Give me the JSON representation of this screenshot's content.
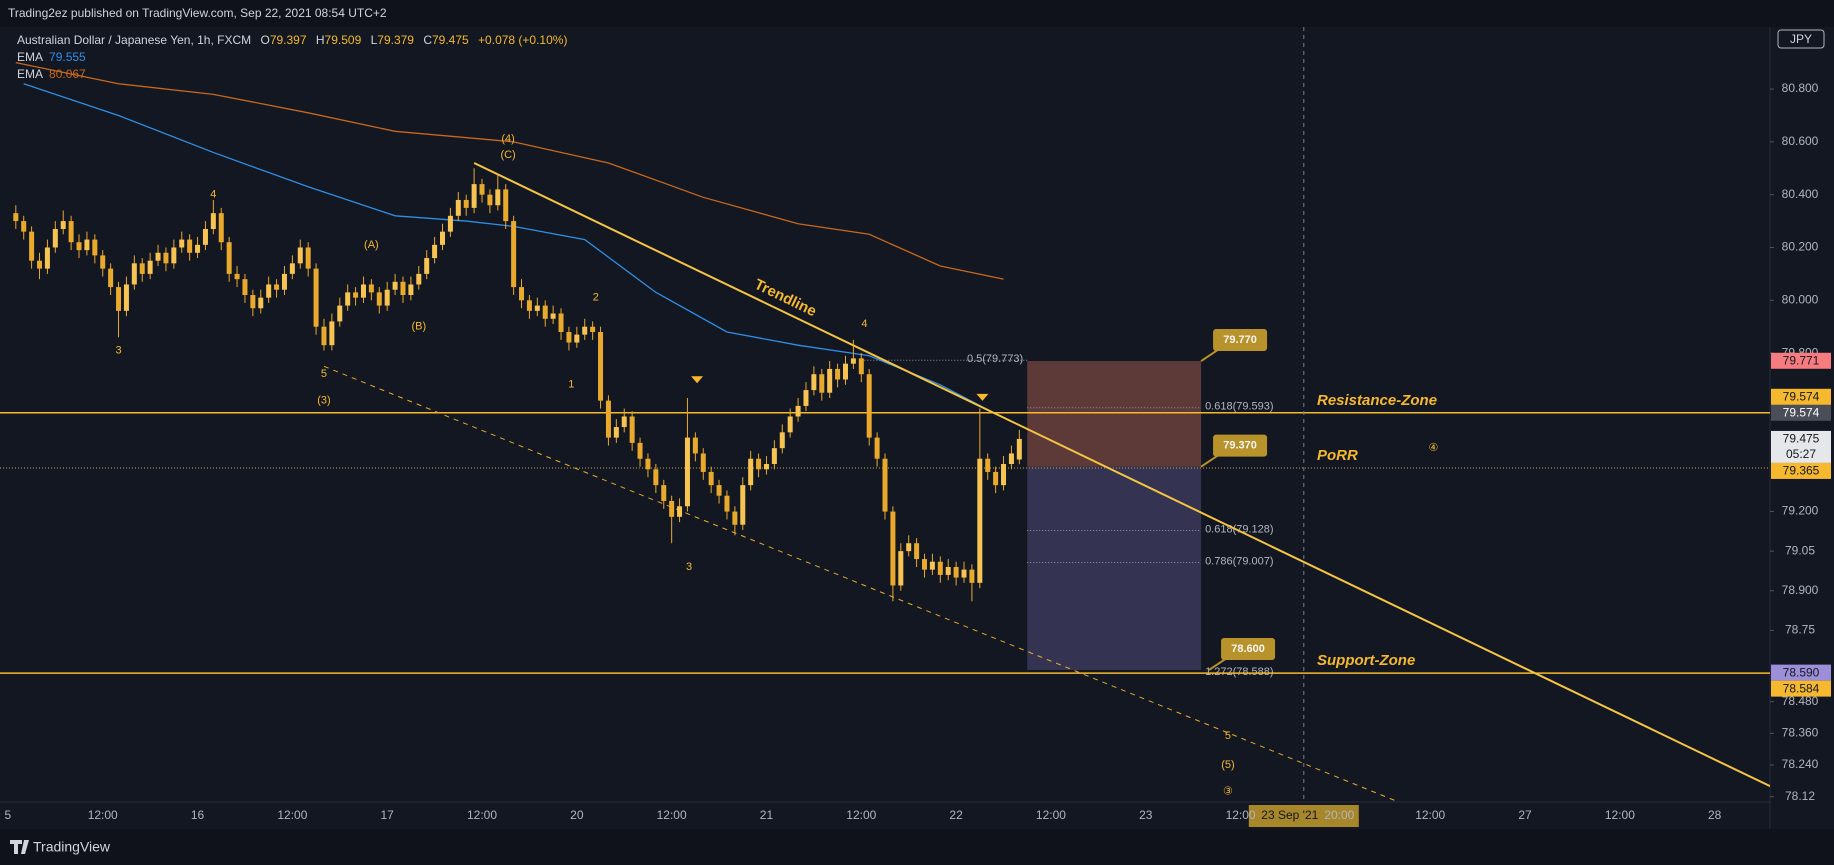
{
  "header": {
    "published": "Trading2ez published on TradingView.com, Sep 22, 2021 08:54 UTC+2"
  },
  "footer": {
    "brand": "TradingView"
  },
  "chart_data": {
    "type": "candlestick",
    "legend": {
      "symbol": "Australian Dollar / Japanese Yen, 1h, FXCM",
      "o_label": "O",
      "open": 79.397,
      "h_label": "H",
      "high": 79.509,
      "l_label": "L",
      "low": 79.379,
      "c_label": "C",
      "close": 79.475,
      "change": "+0.078 (+0.10%)"
    },
    "currency": "JPY",
    "xlim": [
      -25,
      199
    ],
    "xticks": [
      {
        "value": -24,
        "label": "5"
      },
      {
        "value": -12,
        "label": "12:00"
      },
      {
        "value": 0,
        "label": "16"
      },
      {
        "value": 12,
        "label": "12:00"
      },
      {
        "value": 24,
        "label": "17"
      },
      {
        "value": 36,
        "label": "12:00"
      },
      {
        "value": 48,
        "label": "20"
      },
      {
        "value": 60,
        "label": "12:00"
      },
      {
        "value": 72,
        "label": "21"
      },
      {
        "value": 84,
        "label": "12:00"
      },
      {
        "value": 96,
        "label": "22"
      },
      {
        "value": 108,
        "label": "12:00"
      },
      {
        "value": 120,
        "label": "23"
      },
      {
        "value": 132,
        "label": "12:00"
      },
      {
        "value": 144.5,
        "label": "20:00"
      },
      {
        "value": 156,
        "label": "12:00"
      },
      {
        "value": 168,
        "label": "27"
      },
      {
        "value": 180,
        "label": "12:00"
      },
      {
        "value": 192,
        "label": "28"
      }
    ],
    "ylim": [
      78.1,
      81.035
    ],
    "yticks": [
      {
        "value": 80.8,
        "label": "80.800"
      },
      {
        "value": 80.6,
        "label": "80.600"
      },
      {
        "value": 80.4,
        "label": "80.400"
      },
      {
        "value": 80.2,
        "label": "80.200"
      },
      {
        "value": 80,
        "label": "80.000"
      },
      {
        "value": 79.8,
        "label": "79.800"
      },
      {
        "value": 79.2,
        "label": "79.200"
      },
      79.05,
      {
        "value": 78.9,
        "label": "78.900"
      },
      78.75,
      {
        "value": 78.48,
        "label": "78.480"
      },
      {
        "value": 78.36,
        "label": "78.360"
      },
      {
        "value": 78.24,
        "label": "78.240"
      },
      78.12
    ],
    "grid": false,
    "color": "#e8a92c",
    "x": [
      -23,
      -22,
      -21,
      -20,
      -19,
      -18,
      -17,
      -16,
      -15,
      -14,
      -13,
      -12,
      -11,
      -10,
      -9,
      -8,
      -7,
      -6,
      -5,
      -4,
      -3,
      -2,
      -1,
      0,
      1,
      2,
      3,
      4,
      5,
      6,
      7,
      8,
      9,
      10,
      11,
      12,
      13,
      14,
      15,
      16,
      17,
      18,
      19,
      20,
      21,
      22,
      23,
      24,
      25,
      26,
      27,
      28,
      29,
      30,
      31,
      32,
      33,
      34,
      35,
      36,
      37,
      38,
      39,
      40,
      41,
      42,
      43,
      44,
      45,
      46,
      47,
      48,
      49,
      50,
      51,
      52,
      53,
      54,
      55,
      56,
      57,
      58,
      59,
      60,
      61,
      62,
      63,
      64,
      65,
      66,
      67,
      68,
      69,
      70,
      71,
      72,
      73,
      74,
      75,
      76,
      77,
      78,
      79,
      80,
      81,
      82,
      83,
      84,
      85,
      86,
      87,
      88,
      89,
      90,
      91,
      92,
      93,
      94,
      95,
      96,
      97,
      98,
      99,
      100,
      101,
      102,
      103,
      104
    ],
    "candles": [
      [
        80.33,
        80.36,
        80.27,
        80.3
      ],
      [
        80.3,
        80.32,
        80.23,
        80.26
      ],
      [
        80.26,
        80.28,
        80.12,
        80.15
      ],
      [
        80.15,
        80.18,
        80.08,
        80.12
      ],
      [
        80.12,
        80.23,
        80.1,
        80.2
      ],
      [
        80.2,
        80.3,
        80.18,
        80.27
      ],
      [
        80.27,
        80.34,
        80.25,
        80.3
      ],
      [
        80.3,
        80.32,
        80.19,
        80.22
      ],
      [
        80.22,
        80.25,
        80.16,
        80.19
      ],
      [
        80.19,
        80.26,
        80.17,
        80.23
      ],
      [
        80.23,
        80.25,
        80.14,
        80.17
      ],
      [
        80.17,
        80.19,
        80.09,
        80.12
      ],
      [
        80.12,
        80.14,
        80.02,
        80.05
      ],
      [
        80.05,
        80.07,
        79.86,
        79.96
      ],
      [
        79.96,
        80.09,
        79.94,
        80.06
      ],
      [
        80.06,
        80.17,
        80.04,
        80.14
      ],
      [
        80.14,
        80.16,
        80.07,
        80.1
      ],
      [
        80.1,
        80.18,
        80.08,
        80.15
      ],
      [
        80.15,
        80.21,
        80.13,
        80.18
      ],
      [
        80.18,
        80.2,
        80.11,
        80.14
      ],
      [
        80.14,
        80.23,
        80.12,
        80.2
      ],
      [
        80.2,
        80.26,
        80.18,
        80.23
      ],
      [
        80.23,
        80.25,
        80.15,
        80.18
      ],
      [
        80.18,
        80.24,
        80.16,
        80.21
      ],
      [
        80.21,
        80.3,
        80.19,
        80.27
      ],
      [
        80.27,
        80.38,
        80.25,
        80.33
      ],
      [
        80.33,
        80.35,
        80.19,
        80.22
      ],
      [
        80.22,
        80.24,
        80.07,
        80.1
      ],
      [
        80.1,
        80.13,
        80.05,
        80.08
      ],
      [
        80.08,
        80.1,
        79.99,
        80.02
      ],
      [
        80.02,
        80.04,
        79.94,
        79.97
      ],
      [
        79.97,
        80.04,
        79.95,
        80.01
      ],
      [
        80.01,
        80.09,
        79.99,
        80.06
      ],
      [
        80.06,
        80.08,
        80.01,
        80.04
      ],
      [
        80.04,
        80.13,
        80.02,
        80.1
      ],
      [
        80.1,
        80.17,
        80.08,
        80.14
      ],
      [
        80.14,
        80.23,
        80.12,
        80.2
      ],
      [
        80.2,
        80.22,
        80.09,
        80.12
      ],
      [
        80.12,
        80.14,
        79.87,
        79.9
      ],
      [
        79.9,
        79.93,
        79.81,
        79.83
      ],
      [
        79.83,
        79.95,
        79.81,
        79.92
      ],
      [
        79.92,
        80.01,
        79.9,
        79.98
      ],
      [
        79.98,
        80.06,
        79.96,
        80.03
      ],
      [
        80.03,
        80.05,
        79.98,
        80.01
      ],
      [
        80.01,
        80.09,
        79.99,
        80.06
      ],
      [
        80.06,
        80.08,
        80.0,
        80.03
      ],
      [
        80.03,
        80.05,
        79.95,
        79.98
      ],
      [
        79.98,
        80.07,
        79.96,
        80.04
      ],
      [
        80.04,
        80.1,
        80.02,
        80.07
      ],
      [
        80.07,
        80.09,
        79.99,
        80.02
      ],
      [
        80.02,
        80.09,
        80.0,
        80.06
      ],
      [
        80.06,
        80.13,
        80.04,
        80.1
      ],
      [
        80.1,
        80.19,
        80.08,
        80.16
      ],
      [
        80.16,
        80.24,
        80.14,
        80.21
      ],
      [
        80.21,
        80.29,
        80.19,
        80.26
      ],
      [
        80.26,
        80.35,
        80.24,
        80.32
      ],
      [
        80.32,
        80.41,
        80.3,
        80.38
      ],
      [
        80.38,
        80.4,
        80.32,
        80.35
      ],
      [
        80.35,
        80.5,
        80.33,
        80.44
      ],
      [
        80.44,
        80.46,
        80.37,
        80.4
      ],
      [
        80.4,
        80.42,
        80.33,
        80.36
      ],
      [
        80.36,
        80.48,
        80.34,
        80.42
      ],
      [
        80.42,
        80.44,
        80.27,
        80.3
      ],
      [
        80.3,
        80.32,
        80.02,
        80.05
      ],
      [
        80.05,
        80.08,
        79.97,
        80.0
      ],
      [
        80.0,
        80.02,
        79.93,
        79.96
      ],
      [
        79.96,
        80.01,
        79.94,
        79.98
      ],
      [
        79.98,
        80.0,
        79.9,
        79.93
      ],
      [
        79.93,
        79.98,
        79.91,
        79.95
      ],
      [
        79.95,
        79.97,
        79.85,
        79.88
      ],
      [
        79.88,
        79.9,
        79.81,
        79.84
      ],
      [
        79.84,
        79.9,
        79.82,
        79.87
      ],
      [
        79.87,
        79.93,
        79.85,
        79.9
      ],
      [
        79.9,
        79.92,
        79.85,
        79.88
      ],
      [
        79.88,
        79.9,
        79.59,
        79.62
      ],
      [
        79.62,
        79.64,
        79.45,
        79.48
      ],
      [
        79.48,
        79.55,
        79.46,
        79.52
      ],
      [
        79.52,
        79.59,
        79.5,
        79.56
      ],
      [
        79.56,
        79.58,
        79.43,
        79.46
      ],
      [
        79.46,
        79.48,
        79.37,
        79.4
      ],
      [
        79.4,
        79.42,
        79.33,
        79.36
      ],
      [
        79.36,
        79.38,
        79.27,
        79.3
      ],
      [
        79.3,
        79.32,
        79.21,
        79.24
      ],
      [
        79.24,
        79.26,
        79.08,
        79.18
      ],
      [
        79.18,
        79.25,
        79.16,
        79.22
      ],
      [
        79.22,
        79.63,
        79.2,
        79.48
      ],
      [
        79.48,
        79.5,
        79.39,
        79.42
      ],
      [
        79.42,
        79.44,
        79.32,
        79.35
      ],
      [
        79.35,
        79.37,
        79.27,
        79.3
      ],
      [
        79.3,
        79.32,
        79.23,
        79.26
      ],
      [
        79.26,
        79.28,
        79.17,
        79.2
      ],
      [
        79.2,
        79.22,
        79.11,
        79.15
      ],
      [
        79.15,
        79.33,
        79.13,
        79.3
      ],
      [
        79.3,
        79.43,
        79.28,
        79.4
      ],
      [
        79.4,
        79.42,
        79.33,
        79.36
      ],
      [
        79.36,
        79.41,
        79.34,
        79.38
      ],
      [
        79.38,
        79.47,
        79.36,
        79.44
      ],
      [
        79.44,
        79.53,
        79.42,
        79.5
      ],
      [
        79.5,
        79.59,
        79.48,
        79.56
      ],
      [
        79.56,
        79.63,
        79.54,
        79.6
      ],
      [
        79.6,
        79.69,
        79.58,
        79.66
      ],
      [
        79.66,
        79.75,
        79.64,
        79.72
      ],
      [
        79.72,
        79.74,
        79.62,
        79.65
      ],
      [
        79.65,
        79.77,
        79.63,
        79.74
      ],
      [
        79.74,
        79.76,
        79.67,
        79.7
      ],
      [
        79.7,
        79.79,
        79.68,
        79.76
      ],
      [
        79.76,
        79.85,
        79.74,
        79.78
      ],
      [
        79.78,
        79.8,
        79.69,
        79.72
      ],
      [
        79.72,
        79.74,
        79.45,
        79.48
      ],
      [
        79.48,
        79.5,
        79.37,
        79.4
      ],
      [
        79.4,
        79.42,
        79.17,
        79.2
      ],
      [
        79.2,
        79.22,
        78.86,
        78.92
      ],
      [
        78.92,
        79.08,
        78.9,
        79.05
      ],
      [
        79.05,
        79.11,
        79.03,
        79.08
      ],
      [
        79.08,
        79.1,
        78.99,
        79.02
      ],
      [
        79.02,
        79.04,
        78.95,
        78.98
      ],
      [
        78.98,
        79.04,
        78.96,
        79.01
      ],
      [
        79.01,
        79.03,
        78.93,
        78.96
      ],
      [
        78.96,
        79.02,
        78.94,
        78.99
      ],
      [
        78.99,
        79.01,
        78.92,
        78.95
      ],
      [
        78.95,
        79.01,
        78.93,
        78.98
      ],
      [
        78.98,
        79.0,
        78.86,
        78.93
      ],
      [
        78.93,
        79.59,
        78.91,
        79.4
      ],
      [
        79.4,
        79.42,
        79.32,
        79.35
      ],
      [
        79.35,
        79.37,
        79.27,
        79.3
      ],
      [
        79.3,
        79.41,
        79.28,
        79.38
      ],
      [
        79.38,
        79.45,
        79.36,
        79.42
      ],
      [
        79.397,
        79.509,
        79.379,
        79.475
      ]
    ],
    "series": [
      {
        "name": "EMA",
        "value": 79.555,
        "color": "#2f8ee5",
        "x": [
          -22,
          -10,
          2,
          14,
          25,
          34,
          40,
          49,
          58,
          67,
          76,
          85,
          94,
          101
        ],
        "values": [
          80.82,
          80.7,
          80.56,
          80.43,
          80.32,
          80.3,
          80.28,
          80.23,
          80.03,
          79.88,
          79.83,
          79.79,
          79.68,
          79.57
        ]
      },
      {
        "name": "EMA",
        "value": 80.067,
        "color": "#c8681c",
        "x": [
          -23,
          -10,
          2,
          14,
          25,
          40,
          52,
          64,
          76,
          85,
          94,
          102
        ],
        "values": [
          80.9,
          80.82,
          80.78,
          80.71,
          80.64,
          80.6,
          80.52,
          80.39,
          80.29,
          80.25,
          80.13,
          80.08
        ]
      }
    ],
    "trendline": {
      "label": "Trendline",
      "color": "#f5c542",
      "x": [
        35,
        199
      ],
      "values": [
        80.52,
        78.16
      ]
    },
    "channel": {
      "color": "#e8a92c",
      "x": [
        16,
        152
      ],
      "values": [
        79.75,
        78.1
      ]
    },
    "levels": [
      {
        "name": "Resistance-Zone",
        "value": 79.574,
        "style": "solid"
      },
      {
        "name": "PoRR",
        "value": 79.365,
        "style": "dotted"
      },
      {
        "name": "Support-Zone",
        "value": 78.588,
        "style": "solid"
      }
    ],
    "fib": [
      {
        "label": "0.5(79.773)",
        "value": 79.773,
        "x": [
          84,
          105
        ]
      },
      {
        "label": "0.618(79.593)",
        "value": 79.593,
        "x": [
          105,
          127
        ]
      },
      {
        "label": "0.618(79.128)",
        "value": 79.128,
        "x": [
          105,
          127
        ]
      },
      {
        "label": "0.786(79.007)",
        "value": 79.007,
        "x": [
          105,
          127
        ]
      },
      {
        "label": "1.272(78.588)",
        "value": 78.588,
        "x": [
          105,
          127
        ]
      }
    ],
    "position": {
      "x": [
        105,
        127
      ],
      "stop": 79.77,
      "entry": 79.37,
      "target": 78.6,
      "stop_label": "79.770",
      "entry_label": "79.370",
      "target_label": "78.600"
    },
    "waves": [
      {
        "label": "3",
        "x": -10,
        "y": 79.81
      },
      {
        "label": "4",
        "x": 2,
        "y": 80.4
      },
      {
        "label": "(A)",
        "x": 22,
        "y": 80.21
      },
      {
        "label": "(B)",
        "x": 28,
        "y": 79.9
      },
      {
        "label": "(4)",
        "x": 39.3,
        "y": 80.61
      },
      {
        "label": "(C)",
        "x": 39.3,
        "y": 80.55
      },
      {
        "label": "5",
        "x": 16,
        "y": 79.72
      },
      {
        "label": "(3)",
        "x": 16,
        "y": 79.62
      },
      {
        "label": "1",
        "x": 47.3,
        "y": 79.68
      },
      {
        "label": "2",
        "x": 50.4,
        "y": 80.01
      },
      {
        "label": "3",
        "x": 62.2,
        "y": 78.99
      },
      {
        "label": "4",
        "x": 84.4,
        "y": 79.91
      },
      {
        "label": "5",
        "x": 130.4,
        "y": 78.35
      },
      {
        "label": "(5)",
        "x": 130.4,
        "y": 78.24
      },
      {
        "label": "③",
        "x": 130.4,
        "y": 78.14
      },
      {
        "label": "④",
        "x": 156.4,
        "y": 79.44
      }
    ],
    "price_tags": [
      {
        "value": 79.771,
        "color": "#f77c80"
      },
      {
        "value": 79.574,
        "color": "#4a4e59"
      },
      {
        "value": 79.574,
        "color": "#f5b82e"
      },
      {
        "value": 79.475,
        "color": "#e6e7ea",
        "countdown": "05:27"
      },
      {
        "value": 79.365,
        "color": "#f5b82e"
      },
      {
        "value": 78.59,
        "label": "78.590",
        "color": "#9c8fd8"
      },
      {
        "value": 78.584,
        "color": "#f5b82e"
      }
    ],
    "crosshair": {
      "x": 140,
      "label": "23 Sep '21"
    }
  }
}
